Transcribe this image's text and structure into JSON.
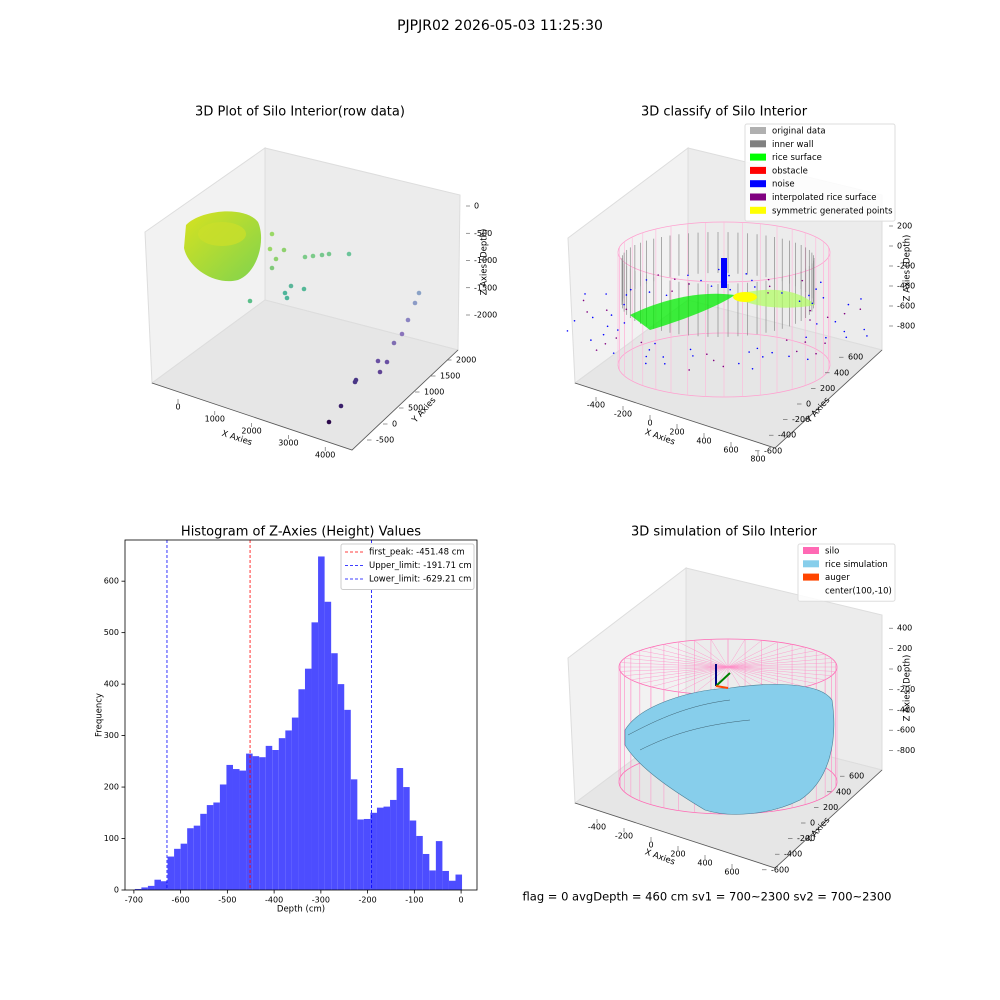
{
  "title": "PJPJR02 2026-05-03 11:25:30",
  "chart_data": [
    {
      "type": "scatter3d",
      "title": "3D Plot of Silo Interior(row data)",
      "xlabel": "X Axies",
      "ylabel": "Y Axies",
      "zlabel": "Z Axies (Depth)",
      "xticks": [
        0,
        1000,
        2000,
        3000,
        4000
      ],
      "yticks": [
        -500,
        0,
        500,
        1000,
        1500,
        2000
      ],
      "zticks": [
        0,
        -500,
        -1000,
        -1500,
        -2000
      ]
    },
    {
      "type": "scatter3d",
      "title": "3D classify of Silo Interior",
      "xlabel": "X Axies",
      "ylabel": "Y Axies",
      "zlabel": "Z Axies (Depth)",
      "xticks": [
        -400,
        -200,
        0,
        200,
        400,
        600,
        800
      ],
      "yticks": [
        -600,
        -400,
        -200,
        0,
        200,
        400,
        600
      ],
      "zticks": [
        200,
        0,
        -200,
        -400,
        -600,
        -800
      ],
      "legend": [
        {
          "name": "original data",
          "color": "#b0b0b0"
        },
        {
          "name": "inner wall",
          "color": "#808080"
        },
        {
          "name": "rice surface",
          "color": "#00ff00"
        },
        {
          "name": "obstacle",
          "color": "#ff0000"
        },
        {
          "name": "noise",
          "color": "#0000ff"
        },
        {
          "name": "interpolated rice surface",
          "color": "#800080"
        },
        {
          "name": "symmetric generated points",
          "color": "#ffff00"
        }
      ]
    },
    {
      "type": "histogram",
      "title": "Histogram of Z-Axies (Height) Values",
      "xlabel": "Depth (cm)",
      "ylabel": "Frequency",
      "color": "#4d4dff",
      "xlim": [
        -719,
        34
      ],
      "ylim": [
        0,
        680
      ],
      "xticks": [
        -700,
        -600,
        -500,
        -400,
        -300,
        -200,
        -100,
        0
      ],
      "yticks": [
        0,
        100,
        200,
        300,
        400,
        500,
        600
      ],
      "bins": [
        -698,
        -684,
        -670,
        -656,
        -642,
        -628,
        -614,
        -600,
        -586,
        -572,
        -558,
        -544,
        -530,
        -516,
        -502,
        -488,
        -474,
        -460,
        -446,
        -432,
        -418,
        -404,
        -390,
        -376,
        -362,
        -348,
        -334,
        -320,
        -306,
        -292,
        -278,
        -264,
        -250,
        -236,
        -222,
        -208,
        -194,
        -180,
        -166,
        -152,
        -138,
        -124,
        -110,
        -96,
        -82,
        -68,
        -54,
        -40,
        -26,
        -12,
        2
      ],
      "counts": [
        2,
        5,
        8,
        20,
        17,
        65,
        80,
        90,
        120,
        125,
        148,
        165,
        170,
        205,
        243,
        235,
        232,
        265,
        260,
        258,
        280,
        272,
        295,
        310,
        335,
        390,
        430,
        520,
        648,
        560,
        460,
        400,
        350,
        215,
        137,
        138,
        150,
        160,
        162,
        175,
        237,
        200,
        135,
        105,
        70,
        38,
        95,
        37,
        18,
        30
      ],
      "lines": [
        {
          "name": "first_peak: -451.48 cm",
          "value": -451.48,
          "color": "#ff0000"
        },
        {
          "name": "Upper_limit: -191.71 cm",
          "value": -191.71,
          "color": "#0000ff"
        },
        {
          "name": "Lower_limit: -629.21 cm",
          "value": -629.21,
          "color": "#0000ff"
        }
      ]
    },
    {
      "type": "surface3d",
      "title": "3D simulation of Silo Interior",
      "xlabel": "X Axies",
      "ylabel": "Y Axies",
      "zlabel": "Z Axies (Depth)",
      "xticks": [
        -400,
        -200,
        0,
        200,
        400,
        600
      ],
      "yticks": [
        -600,
        -400,
        -200,
        0,
        200,
        400,
        600
      ],
      "zticks": [
        400,
        200,
        0,
        -200,
        -400,
        -600,
        -800
      ],
      "legend": [
        {
          "name": "silo",
          "color": "#ff69b4"
        },
        {
          "name": "rice simulation",
          "color": "#87ceeb"
        },
        {
          "name": "auger",
          "color": "#ff4500"
        },
        {
          "name": "center(100,-10)"
        }
      ]
    }
  ],
  "footer": "flag = 0     avgDepth = 460 cm  sv1 = 700~2300  sv2 = 700~2300"
}
